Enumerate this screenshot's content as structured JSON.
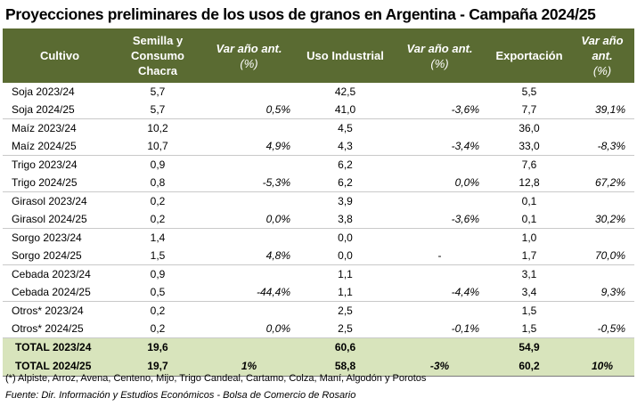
{
  "title": "Proyecciones preliminares de los usos de granos en Argentina - Campaña 2024/25",
  "headers": {
    "cultivo": "Cultivo",
    "semilla": "Semilla y Consumo Chacra",
    "var1": "Var año ant.",
    "var1_unit": "(%)",
    "uso_industrial": "Uso Industrial",
    "var2": "Var año ant.",
    "var2_unit": "(%)",
    "exportacion": "Exportación",
    "var3": "Var año ant.",
    "var3_unit": "(%)"
  },
  "rows": [
    {
      "crop": "Soja 2023/24",
      "semilla": "5,7",
      "var1": "",
      "industrial": "42,5",
      "var2": "",
      "export": "5,5",
      "var3": ""
    },
    {
      "crop": "Soja 2024/25",
      "semilla": "5,7",
      "var1": "0,5%",
      "industrial": "41,0",
      "var2": "-3,6%",
      "export": "7,7",
      "var3": "39,1%"
    },
    {
      "crop": "Maíz 2023/24",
      "semilla": "10,2",
      "var1": "",
      "industrial": "4,5",
      "var2": "",
      "export": "36,0",
      "var3": ""
    },
    {
      "crop": "Maíz 2024/25",
      "semilla": "10,7",
      "var1": "4,9%",
      "industrial": "4,3",
      "var2": "-3,4%",
      "export": "33,0",
      "var3": "-8,3%"
    },
    {
      "crop": "Trigo 2023/24",
      "semilla": "0,9",
      "var1": "",
      "industrial": "6,2",
      "var2": "",
      "export": "7,6",
      "var3": ""
    },
    {
      "crop": "Trigo 2024/25",
      "semilla": "0,8",
      "var1": "-5,3%",
      "industrial": "6,2",
      "var2": "0,0%",
      "export": "12,8",
      "var3": "67,2%"
    },
    {
      "crop": "Girasol 2023/24",
      "semilla": "0,2",
      "var1": "",
      "industrial": "3,9",
      "var2": "",
      "export": "0,1",
      "var3": ""
    },
    {
      "crop": "Girasol 2024/25",
      "semilla": "0,2",
      "var1": "0,0%",
      "industrial": "3,8",
      "var2": "-3,6%",
      "export": "0,1",
      "var3": "30,2%"
    },
    {
      "crop": "Sorgo 2023/24",
      "semilla": "1,4",
      "var1": "",
      "industrial": "0,0",
      "var2": "",
      "export": "1,0",
      "var3": ""
    },
    {
      "crop": "Sorgo 2024/25",
      "semilla": "1,5",
      "var1": "4,8%",
      "industrial": "0,0",
      "var2": "-",
      "export": "1,7",
      "var3": "70,0%"
    },
    {
      "crop": "Cebada 2023/24",
      "semilla": "0,9",
      "var1": "",
      "industrial": "1,1",
      "var2": "",
      "export": "3,1",
      "var3": ""
    },
    {
      "crop": "Cebada 2024/25",
      "semilla": "0,5",
      "var1": "-44,4%",
      "industrial": "1,1",
      "var2": "-4,4%",
      "export": "3,4",
      "var3": "9,3%"
    },
    {
      "crop": "Otros* 2023/24",
      "semilla": "0,2",
      "var1": "",
      "industrial": "2,5",
      "var2": "",
      "export": "1,5",
      "var3": ""
    },
    {
      "crop": "Otros* 2024/25",
      "semilla": "0,2",
      "var1": "0,0%",
      "industrial": "2,5",
      "var2": "-0,1%",
      "export": "1,5",
      "var3": "-0,5%"
    }
  ],
  "totals": [
    {
      "crop": "TOTAL 2023/24",
      "semilla": "19,6",
      "var1": "",
      "industrial": "60,6",
      "var2": "",
      "export": "54,9",
      "var3": ""
    },
    {
      "crop": "TOTAL 2024/25",
      "semilla": "19,7",
      "var1": "1%",
      "industrial": "58,8",
      "var2": "-3%",
      "export": "60,2",
      "var3": "10%"
    }
  ],
  "footnote": "(*) Alpiste, Arroz, Avena, Centeno, Mijo, Trigo Candeal, Cartamo, Colza, Maní, Algodón y Porotos",
  "source": "Fuente: Dir. Información y Estudios Económicos - Bolsa de Comercio de Rosario"
}
